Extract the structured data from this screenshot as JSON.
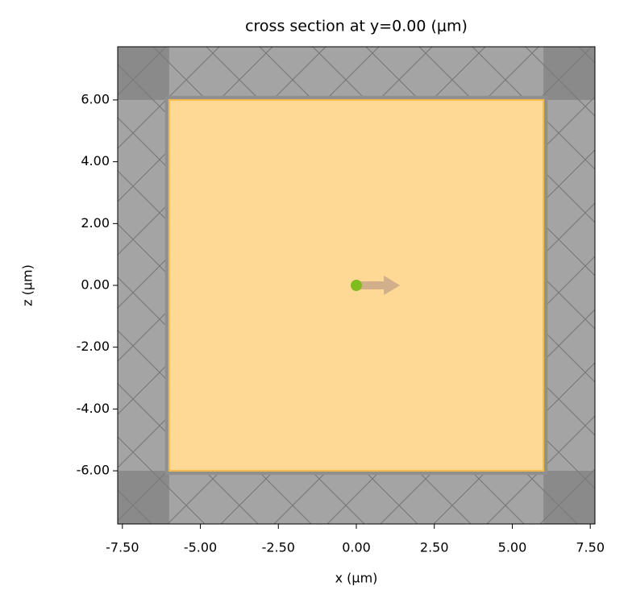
{
  "chart_data": {
    "type": "section",
    "title": "cross section at y=0.00 (μm)",
    "x_label": "x (μm)",
    "y_label": "z (μm)",
    "xlim": [
      -7.65,
      7.65
    ],
    "ylim": [
      -7.72,
      7.72
    ],
    "xticks": [
      {
        "value": -7.5,
        "label": "-7.50"
      },
      {
        "value": -5,
        "label": "-5.00"
      },
      {
        "value": -2.5,
        "label": "-2.50"
      },
      {
        "value": 0,
        "label": "0.00"
      },
      {
        "value": 2.5,
        "label": "2.50"
      },
      {
        "value": 5,
        "label": "5.00"
      },
      {
        "value": 7.5,
        "label": "7.50"
      }
    ],
    "yticks": [
      {
        "value": -6,
        "label": "-6.00"
      },
      {
        "value": -4,
        "label": "-4.00"
      },
      {
        "value": -2,
        "label": "-2.00"
      },
      {
        "value": 0,
        "label": "0.00"
      },
      {
        "value": 2,
        "label": "2.00"
      },
      {
        "value": 4,
        "label": "4.00"
      },
      {
        "value": 6,
        "label": "6.00"
      }
    ],
    "box": {
      "x": [
        -6,
        6
      ],
      "z": [
        -6,
        6
      ],
      "color": "#fdd995",
      "edge_color": "#f3b94a"
    },
    "background_color": "#a4a4a4",
    "pml_corner_color": "#8a8a8a",
    "source": {
      "x": 0,
      "z": 0,
      "color": "#7fbc1e",
      "arrow_x": 1.4,
      "arrow_color": "#c9a78a"
    }
  }
}
